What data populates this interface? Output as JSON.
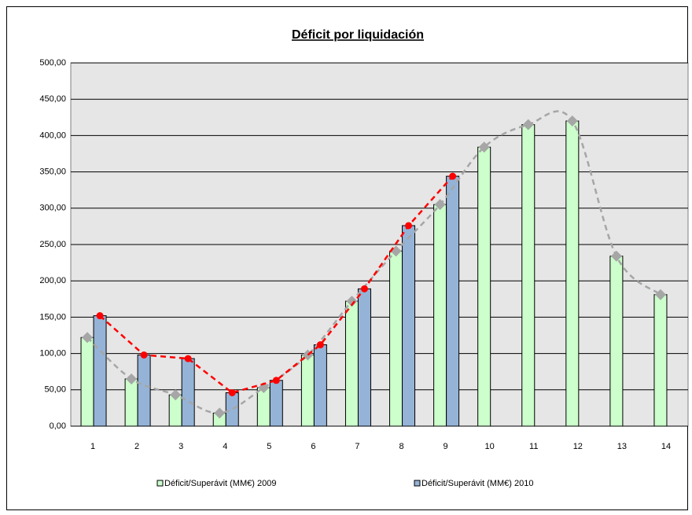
{
  "chart_data": {
    "type": "bar",
    "title": "Déficit por liquidación",
    "categories": [
      "1",
      "2",
      "3",
      "4",
      "5",
      "6",
      "7",
      "8",
      "9",
      "10",
      "11",
      "12",
      "13",
      "14"
    ],
    "series": [
      {
        "name": "Déficit/Superávit (MM€) 2009",
        "color": "#ccffcc",
        "trend_color": "#a6a6a6",
        "trend_marker": "diamond",
        "values": [
          122,
          65,
          43,
          18,
          53,
          98,
          172,
          241,
          305,
          384,
          415,
          420,
          234,
          181
        ]
      },
      {
        "name": "Déficit/Superávit (MM€) 2010",
        "color": "#95b3d7",
        "trend_color": "#ff0000",
        "trend_marker": "circle",
        "values": [
          152,
          98,
          93,
          46,
          63,
          112,
          189,
          276,
          344,
          null,
          null,
          null,
          null,
          null
        ]
      }
    ],
    "ylim": [
      0,
      500
    ],
    "yticks": [
      {
        "value": 0,
        "label": "0,00"
      },
      {
        "value": 50,
        "label": "50,00"
      },
      {
        "value": 100,
        "label": "100,00"
      },
      {
        "value": 150,
        "label": "150,00"
      },
      {
        "value": 200,
        "label": "200,00"
      },
      {
        "value": 250,
        "label": "250,00"
      },
      {
        "value": 300,
        "label": "300,00"
      },
      {
        "value": 350,
        "label": "350,00"
      },
      {
        "value": 400,
        "label": "400,00"
      },
      {
        "value": 450,
        "label": "450,00"
      },
      {
        "value": 500,
        "label": "500,00"
      }
    ],
    "grid": true,
    "legend": "bottom"
  }
}
